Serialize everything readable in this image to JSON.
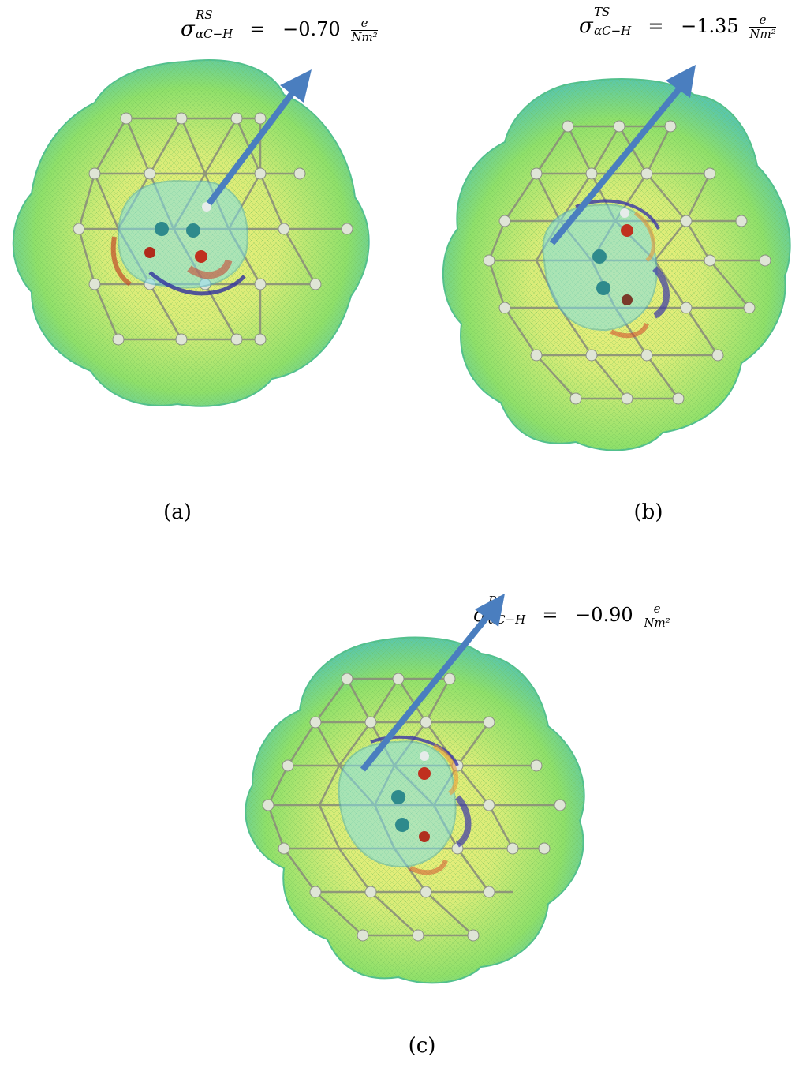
{
  "panels": [
    {
      "caption": "(a)",
      "formula": {
        "symbol": "σ",
        "superscript": "RS",
        "subscript": "αC−H",
        "equals": "=",
        "value": "−0.70",
        "unit_num": "e",
        "unit_den": "Nm²"
      }
    },
    {
      "caption": "(b)",
      "formula": {
        "symbol": "σ",
        "superscript": "TS",
        "subscript": "αC−H",
        "equals": "=",
        "value": "−1.35",
        "unit_num": "e",
        "unit_den": "Nm²"
      }
    },
    {
      "caption": "(c)",
      "formula": {
        "symbol": "σ",
        "superscript": "PS",
        "subscript": "αC−H",
        "equals": "=",
        "value": "−0.90",
        "unit_num": "e",
        "unit_den": "Nm²"
      }
    }
  ],
  "colors": {
    "arrow": "#4a7ebf",
    "surface_outer": "#5fd06a",
    "surface_mid": "#a8e86a",
    "surface_inner": "#e8f07a",
    "lattice": "#8a8f7a",
    "atom": "#d9e0d0",
    "molecule": "#4fb8c8",
    "oxygen": "#c0301f",
    "negative_region": "#3a34a8",
    "positive_region": "#d4462a"
  }
}
